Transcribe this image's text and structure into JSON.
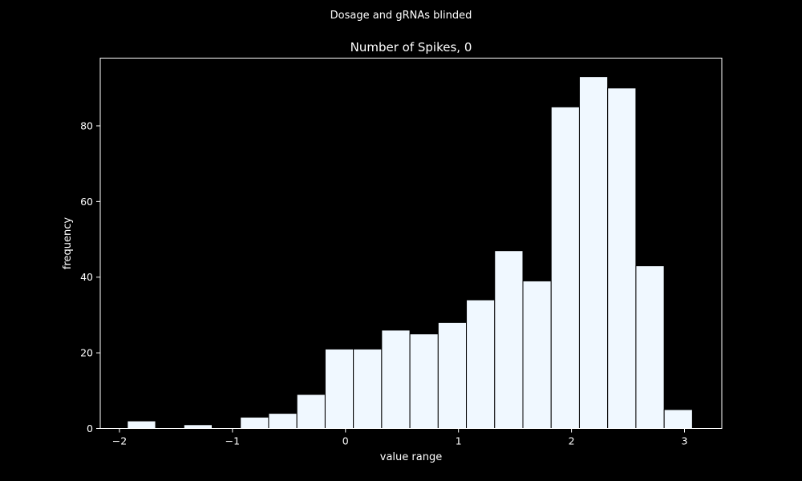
{
  "suptitle": "Dosage and gRNAs blinded",
  "chart_data": {
    "type": "bar",
    "title": "Number of Spikes, 0",
    "xlabel": "value range",
    "ylabel": "frequency",
    "xlim": [
      -2.17,
      3.33
    ],
    "ylim": [
      0,
      97.9
    ],
    "xticks": [
      -2,
      -1,
      0,
      1,
      2,
      3
    ],
    "yticks": [
      0,
      20,
      40,
      60,
      80
    ],
    "bin_edges": [
      -1.93,
      -1.68,
      -1.43,
      -1.18,
      -0.93,
      -0.68,
      -0.43,
      -0.18,
      0.07,
      0.32,
      0.57,
      0.82,
      1.07,
      1.32,
      1.57,
      1.82,
      2.07,
      2.32,
      2.57,
      2.82,
      3.07
    ],
    "values": [
      2,
      0,
      1,
      0,
      3,
      4,
      9,
      21,
      21,
      26,
      25,
      28,
      34,
      47,
      39,
      85,
      93,
      90,
      43,
      5
    ],
    "grid": false,
    "legend": "none",
    "colors": {
      "background": "#000000",
      "bar_fill": "#f0f8ff",
      "bar_edge": "#000000",
      "axes": "#ffffff",
      "text": "#ffffff"
    }
  }
}
